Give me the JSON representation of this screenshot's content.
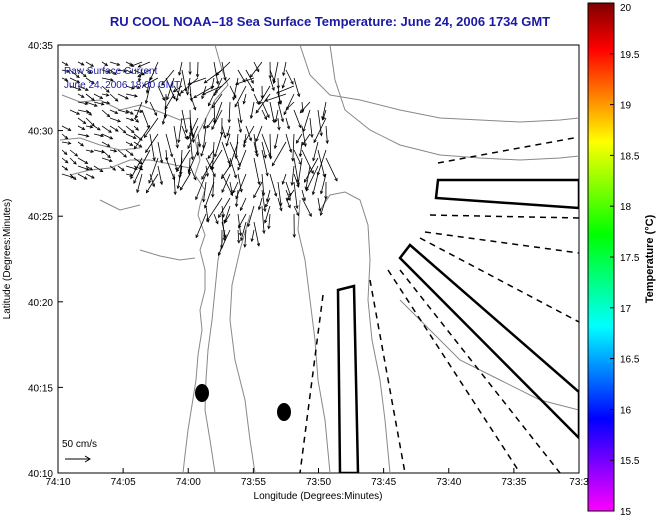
{
  "header": {
    "title": "RU COOL   NOAA–18  Sea Surface Temperature:  June 24, 2006 1734 GMT"
  },
  "map": {
    "legend_line1": "Raw Surface Current",
    "legend_line2": "June 24, 2006 18:00 GMT",
    "scale_label": "50 cm/s",
    "xlabel": "Longitude (Degrees:Minutes)",
    "ylabel": "Latitude (Degrees:Minutes)",
    "x_ticks": [
      "74:10",
      "74:05",
      "74:00",
      "73:55",
      "73:50",
      "73:45",
      "73:40",
      "73:35",
      "73:3"
    ],
    "y_ticks": [
      "40:35",
      "40:30",
      "40:25",
      "40:20",
      "40:15",
      "40:10"
    ]
  },
  "colorbar": {
    "label": "Temperature (°C)",
    "ticks": [
      "20",
      "19.5",
      "19",
      "18.5",
      "18",
      "17.5",
      "17",
      "16.5",
      "16",
      "15.5",
      "15"
    ],
    "colors": [
      "#ff00ff",
      "#8000ff",
      "#0000ff",
      "#0080ff",
      "#00ffff",
      "#00ff80",
      "#00ff00",
      "#80ff00",
      "#ffff00",
      "#ff8000",
      "#ff0000",
      "#800000"
    ]
  }
}
